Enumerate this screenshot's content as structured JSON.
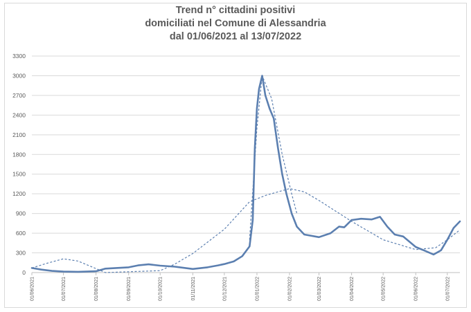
{
  "chart_data": {
    "type": "line",
    "title_lines": [
      "Trend n° cittadini positivi",
      "domiciliati nel Comune di Alessandria",
      "dal 01/06/2021 al 13/07/2022"
    ],
    "xlabel": "",
    "ylabel": "",
    "ylim": [
      0,
      3300
    ],
    "y_ticks": [
      0,
      300,
      600,
      900,
      1200,
      1500,
      1800,
      2100,
      2400,
      2700,
      3000,
      3300
    ],
    "x_range": [
      "2021-06-01",
      "2022-07-13"
    ],
    "x_ticks": [
      "01/06/2021",
      "01/07/2021",
      "01/08/2021",
      "01/09/2021",
      "01/10/2021",
      "01/11/2021",
      "01/12/2021",
      "01/01/2022",
      "01/02/2022",
      "01/03/2022",
      "01/04/2022",
      "01/05/2022",
      "01/06/2022",
      "01/07/2022"
    ],
    "grid": "horizontal",
    "legend": "none",
    "series": [
      {
        "style": "solid-thick",
        "color": "#5b7fb0",
        "points": [
          [
            "01/06/2021",
            70
          ],
          [
            "10/06/2021",
            45
          ],
          [
            "20/06/2021",
            25
          ],
          [
            "01/07/2021",
            15
          ],
          [
            "15/07/2021",
            12
          ],
          [
            "01/08/2021",
            20
          ],
          [
            "10/08/2021",
            60
          ],
          [
            "20/08/2021",
            70
          ],
          [
            "01/09/2021",
            80
          ],
          [
            "10/09/2021",
            110
          ],
          [
            "20/09/2021",
            125
          ],
          [
            "01/10/2021",
            105
          ],
          [
            "15/10/2021",
            90
          ],
          [
            "01/11/2021",
            55
          ],
          [
            "15/11/2021",
            80
          ],
          [
            "25/11/2021",
            110
          ],
          [
            "01/12/2021",
            130
          ],
          [
            "10/12/2021",
            170
          ],
          [
            "18/12/2021",
            250
          ],
          [
            "25/12/2021",
            400
          ],
          [
            "28/12/2021",
            800
          ],
          [
            "30/12/2021",
            1900
          ],
          [
            "01/01/2022",
            2500
          ],
          [
            "03/01/2022",
            2800
          ],
          [
            "06/01/2022",
            3000
          ],
          [
            "09/01/2022",
            2700
          ],
          [
            "13/01/2022",
            2500
          ],
          [
            "17/01/2022",
            2350
          ],
          [
            "21/01/2022",
            1900
          ],
          [
            "25/01/2022",
            1500
          ],
          [
            "29/01/2022",
            1200
          ],
          [
            "03/02/2022",
            900
          ],
          [
            "08/02/2022",
            700
          ],
          [
            "15/02/2022",
            580
          ],
          [
            "01/03/2022",
            540
          ],
          [
            "12/03/2022",
            600
          ],
          [
            "20/03/2022",
            700
          ],
          [
            "25/03/2022",
            690
          ],
          [
            "01/04/2022",
            800
          ],
          [
            "10/04/2022",
            820
          ],
          [
            "20/04/2022",
            810
          ],
          [
            "28/04/2022",
            850
          ],
          [
            "05/05/2022",
            700
          ],
          [
            "12/05/2022",
            580
          ],
          [
            "20/05/2022",
            550
          ],
          [
            "01/06/2022",
            390
          ],
          [
            "10/06/2022",
            330
          ],
          [
            "18/06/2022",
            275
          ],
          [
            "25/06/2022",
            340
          ],
          [
            "01/07/2022",
            500
          ],
          [
            "07/07/2022",
            680
          ],
          [
            "13/07/2022",
            780
          ]
        ]
      },
      {
        "style": "dashed",
        "color": "#5b7fb0",
        "points": [
          [
            "01/06/2021",
            70
          ],
          [
            "15/06/2021",
            140
          ],
          [
            "01/07/2021",
            210
          ],
          [
            "15/07/2021",
            175
          ],
          [
            "01/08/2021",
            60
          ],
          [
            "10/08/2021",
            0
          ],
          [
            "01/10/2021",
            30
          ],
          [
            "15/10/2021",
            130
          ],
          [
            "01/11/2021",
            290
          ],
          [
            "01/12/2021",
            660
          ],
          [
            "25/12/2021",
            1080
          ],
          [
            "10/01/2022",
            1180
          ],
          [
            "01/02/2022",
            1280
          ],
          [
            "15/02/2022",
            1230
          ],
          [
            "01/03/2022",
            1100
          ],
          [
            "01/04/2022",
            780
          ],
          [
            "01/05/2022",
            500
          ],
          [
            "01/06/2022",
            350
          ],
          [
            "20/06/2022",
            380
          ],
          [
            "01/07/2022",
            500
          ],
          [
            "13/07/2022",
            650
          ]
        ]
      },
      {
        "style": "dashed-peak",
        "color": "#5b7fb0",
        "points": [
          [
            "25/12/2021",
            500
          ],
          [
            "01/01/2022",
            2200
          ],
          [
            "06/01/2022",
            3000
          ],
          [
            "15/01/2022",
            2650
          ],
          [
            "25/01/2022",
            1800
          ],
          [
            "03/02/2022",
            1200
          ],
          [
            "08/02/2022",
            900
          ]
        ]
      }
    ]
  }
}
